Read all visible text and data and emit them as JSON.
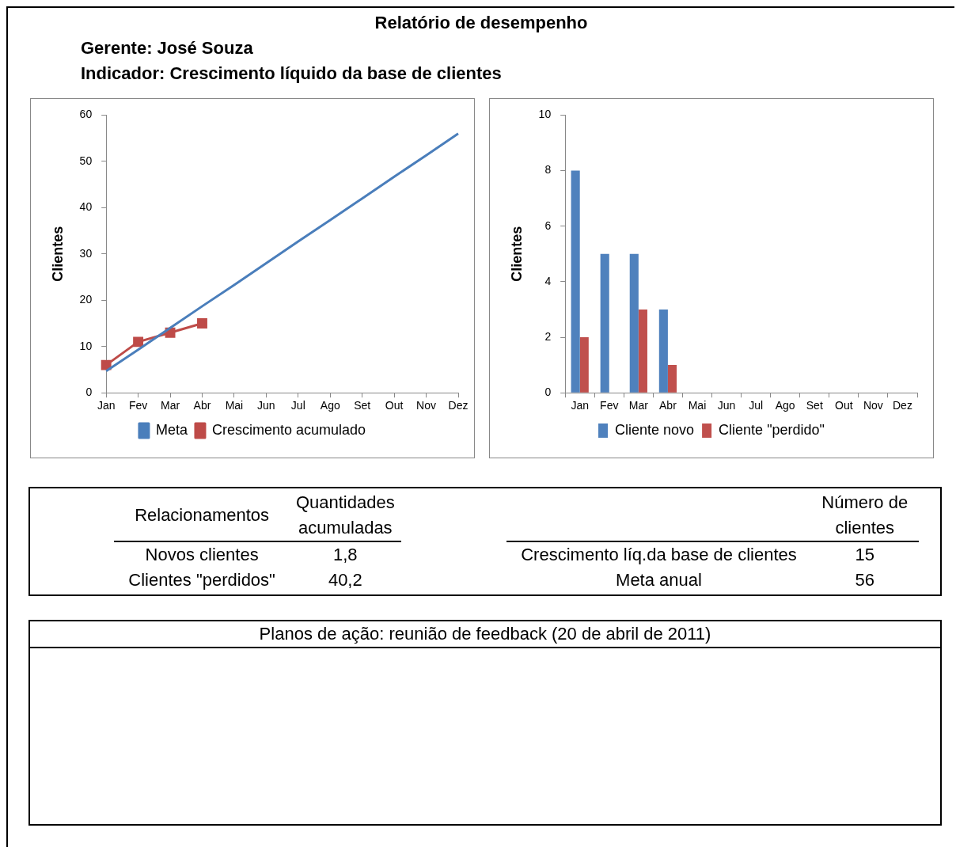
{
  "chart_data": [
    {
      "type": "line",
      "title": "Relatório de desempenho",
      "subtitle": "Gerente: José Souza",
      "annotations": [
        "Indicador: Crescimento líquido da base de clientes"
      ],
      "ylabel": "Clientes",
      "categories": [
        "Jan",
        "Fev",
        "Mar",
        "Abr",
        "Mai",
        "Jun",
        "Jul",
        "Ago",
        "Set",
        "Out",
        "Nov",
        "Dez"
      ],
      "ylim": [
        0,
        60
      ],
      "yticks": [
        0,
        10,
        20,
        30,
        40,
        50,
        60
      ],
      "grid": false,
      "legend": "bottom",
      "series": [
        {
          "name": "Meta",
          "color": "#4a7ebb",
          "marker": "none",
          "values": [
            4.7,
            9.3,
            14,
            18.7,
            23.3,
            28,
            32.7,
            37.3,
            42,
            46.7,
            51.3,
            56
          ]
        },
        {
          "name": "Crescimento acumulado",
          "color": "#be4b48",
          "marker": "square",
          "values": [
            6,
            11,
            13,
            15,
            null,
            null,
            null,
            null,
            null,
            null,
            null,
            null
          ]
        }
      ]
    },
    {
      "type": "bar",
      "ylabel": "Clientes",
      "categories": [
        "Jan",
        "Fev",
        "Mar",
        "Abr",
        "Mai",
        "Jun",
        "Jul",
        "Ago",
        "Set",
        "Out",
        "Nov",
        "Dez"
      ],
      "ylim": [
        0,
        10
      ],
      "yticks": [
        0,
        2,
        4,
        6,
        8,
        10
      ],
      "grid": false,
      "legend": "bottom",
      "series": [
        {
          "name": "Cliente novo",
          "color": "#4f81bd",
          "values": [
            8,
            5,
            5,
            3,
            null,
            null,
            null,
            null,
            null,
            null,
            null,
            null
          ]
        },
        {
          "name": "Cliente \"perdido\"",
          "color": "#c0504d",
          "values": [
            2,
            0,
            3,
            1,
            null,
            null,
            null,
            null,
            null,
            null,
            null,
            null
          ]
        }
      ]
    },
    {
      "type": "other",
      "ylabel": "Relacionamentos",
      "xlabel": "Quantidades acumuladas",
      "annotations": [
        "Novos clientes",
        "1,8",
        "Clientes \"perdidos\"",
        "40,2"
      ]
    },
    {
      "type": "other",
      "xlabel": "Número de clientes",
      "annotations": [
        "Crescimento líq.da base de clientes",
        "15",
        "Meta anual",
        "56"
      ]
    },
    {
      "type": "other",
      "title": "Planos de ação: reunião de feedback (20 de abril de 2011)"
    }
  ]
}
